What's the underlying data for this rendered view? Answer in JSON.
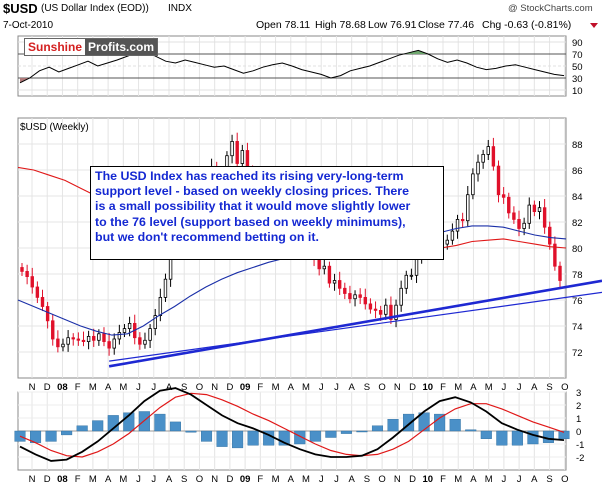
{
  "header": {
    "symbol": "$USD",
    "description": "(US Dollar Index (EOD))",
    "exchange": "INDX",
    "date": "7-Oct-2010",
    "open": "Open 78.11",
    "high": "High 78.68",
    "low": "Low 76.91",
    "close": "Close 77.46",
    "change": "Chg -0.63 (-0.81%)",
    "watermark": "@ StockCharts.com"
  },
  "logo": {
    "part1": "Sunshine",
    "part2": "Profits.com"
  },
  "annotation": "The USD Index has reached its rising very-long-term\nsupport level - based on weekly closing prices. There\nis a small possibility that it would move slightly lower\nto the 76 level (support based on weekly minimums),\nbut we don't recommend betting on it.",
  "colors": {
    "up_candle": "#000000",
    "down_candle": "#e0102a",
    "ma_red": "#e01818",
    "ma_blue": "#1a2fa8",
    "trendline": "#1e28d2",
    "rsi_fill_high": "#6fa86f",
    "rsi_fill_low": "#b07a7a",
    "macd_hist": "#4a90c8",
    "annotation_text": "#1428d2"
  },
  "chart_data": [
    {
      "type": "line",
      "name": "RSI",
      "ylim": [
        0,
        100
      ],
      "yticks": [
        10,
        30,
        50,
        70,
        90
      ],
      "overbought": 70,
      "oversold": 30,
      "values": [
        22,
        30,
        42,
        48,
        40,
        46,
        52,
        58,
        50,
        55,
        60,
        66,
        72,
        74,
        66,
        58,
        55,
        60,
        56,
        52,
        48,
        50,
        44,
        38,
        42,
        48,
        52,
        55,
        50,
        44,
        40,
        36,
        30,
        34,
        42,
        46,
        50,
        56,
        62,
        68,
        72,
        76,
        70,
        62,
        56,
        60,
        55,
        48,
        44,
        46,
        50,
        52,
        48,
        44,
        40,
        36,
        34
      ]
    },
    {
      "type": "candlestick",
      "title": "$USD (Weekly)",
      "ylim": [
        70,
        90
      ],
      "yticks": [
        72,
        74,
        76,
        78,
        80,
        82,
        84,
        86,
        88
      ],
      "xticks": [
        "N",
        "D",
        "08",
        "F",
        "M",
        "A",
        "M",
        "J",
        "J",
        "A",
        "S",
        "O",
        "N",
        "D",
        "09",
        "F",
        "M",
        "A",
        "M",
        "J",
        "J",
        "A",
        "S",
        "O",
        "N",
        "D",
        "10",
        "F",
        "M",
        "A",
        "M",
        "J",
        "J",
        "A",
        "S",
        "O"
      ],
      "close": [
        78.2,
        77.8,
        77.0,
        76.2,
        75.5,
        74.4,
        73.0,
        72.4,
        72.6,
        73.1,
        73.0,
        72.9,
        72.8,
        73.2,
        72.9,
        73.4,
        72.8,
        72.3,
        73.0,
        73.5,
        73.8,
        74.2,
        73.1,
        72.6,
        72.9,
        73.8,
        74.8,
        76.2,
        77.6,
        79.6,
        81.2,
        83.0,
        84.5,
        85.3,
        84.0,
        85.6,
        83.0,
        86.2,
        84.8,
        85.7,
        87.1,
        88.2,
        86.5,
        87.5,
        86.0,
        85.4,
        84.8,
        83.2,
        82.5,
        81.1,
        80.2,
        80.5,
        80.7,
        80.1,
        79.7,
        80.0,
        79.5,
        79.2,
        78.4,
        78.6,
        77.3,
        77.5,
        76.9,
        76.5,
        76.1,
        76.4,
        76.2,
        75.7,
        75.3,
        75.2,
        74.9,
        75.6,
        74.5,
        75.6,
        76.9,
        77.9,
        77.9,
        79.3,
        80.3,
        80.0,
        79.8,
        80.8,
        80.3,
        80.6,
        81.3,
        82.2,
        82.1,
        84.1,
        85.7,
        86.6,
        87.2,
        87.8,
        86.3,
        84.1,
        83.9,
        82.7,
        82.2,
        81.5,
        81.9,
        83.3,
        82.8,
        83.1,
        81.6,
        80.3,
        78.6,
        77.5
      ],
      "ma_50_week": [
        86.2,
        86.0,
        85.6,
        85.2,
        84.6,
        84.0,
        83.3,
        82.5,
        81.8,
        81.2,
        80.7,
        80.3,
        80.0,
        79.9,
        79.9,
        80.0,
        80.1,
        80.1,
        80.0,
        80.0,
        79.9,
        79.8,
        79.7,
        79.7,
        79.7,
        79.8,
        79.9,
        80.0,
        80.2,
        80.5,
        80.6,
        80.7,
        80.5,
        80.3,
        80.1,
        80.0
      ],
      "ma_200_week": [
        76.0,
        75.5,
        75.0,
        74.5,
        74.0,
        73.6,
        73.3,
        73.4,
        74.0,
        74.8,
        75.5,
        76.3,
        77.0,
        77.6,
        78.1,
        78.5,
        78.9,
        79.2,
        79.4,
        79.5,
        79.5,
        79.5,
        79.6,
        79.8,
        80.1,
        80.4,
        80.8,
        81.2,
        81.5,
        81.7,
        81.7,
        81.6,
        81.3,
        81.0,
        80.8,
        80.7
      ],
      "support_line_closing": {
        "from": [
          "2008-03",
          70.9
        ],
        "to": [
          "2010-10",
          77.0
        ]
      },
      "support_line_minimums": {
        "from": [
          "2008-04",
          71.3
        ],
        "to": [
          "2010-10",
          76.2
        ]
      }
    },
    {
      "type": "line",
      "name": "MACD",
      "ylim": [
        -3,
        3
      ],
      "yticks": [
        3,
        2,
        1,
        0,
        -1,
        -2
      ],
      "macd": [
        -1.2,
        -1.8,
        -2.3,
        -2.2,
        -1.6,
        -0.8,
        0.2,
        1.2,
        2.3,
        3.1,
        3.3,
        2.8,
        2.0,
        1.2,
        0.6,
        0.2,
        -0.3,
        -0.9,
        -1.4,
        -1.8,
        -2.0,
        -2.0,
        -1.9,
        -1.4,
        -0.5,
        0.5,
        1.5,
        2.3,
        2.6,
        2.2,
        1.5,
        0.6,
        0.1,
        -0.3,
        -0.6,
        -0.7
      ],
      "signal": [
        -0.4,
        -0.9,
        -1.5,
        -1.9,
        -2.0,
        -1.6,
        -1.0,
        -0.2,
        0.8,
        1.8,
        2.6,
        2.9,
        2.8,
        2.4,
        1.9,
        1.3,
        0.8,
        0.2,
        -0.4,
        -1.0,
        -1.5,
        -1.8,
        -1.9,
        -1.8,
        -1.4,
        -0.8,
        0.1,
        1.0,
        1.7,
        2.1,
        2.1,
        1.7,
        1.2,
        0.7,
        0.3,
        -0.1
      ]
    }
  ]
}
